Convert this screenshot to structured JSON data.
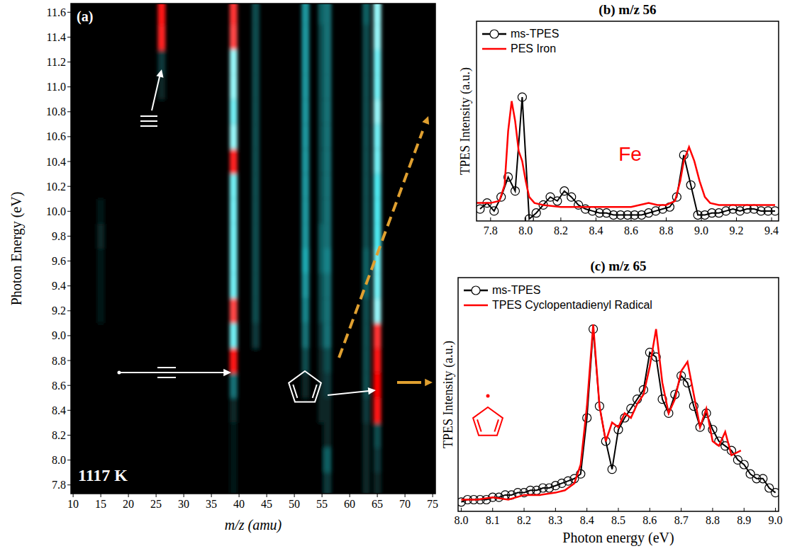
{
  "chart_data": [
    {
      "type": "heatmap",
      "title": "(a)",
      "x_label": "m/z (amu)",
      "y_label": "Photon Energy (eV)",
      "annotations": [
        "1117 K"
      ],
      "x": [
        15,
        26,
        39,
        43,
        52,
        55,
        56,
        63,
        65
      ],
      "y": [
        7.8,
        8.0,
        8.2,
        8.4,
        8.6,
        8.8,
        9.0,
        9.2,
        9.4,
        9.6,
        9.8,
        10.0,
        10.2,
        10.4,
        10.6,
        10.8,
        11.0,
        11.2,
        11.4,
        11.6
      ],
      "cells": [
        [
          0,
          0,
          0.05,
          0,
          0,
          0,
          0.15,
          0.1,
          0.1
        ],
        [
          0,
          0,
          0.05,
          0,
          0,
          0,
          0.25,
          0.1,
          0.15
        ],
        [
          0,
          0,
          0.05,
          0,
          0,
          0,
          0.1,
          0.1,
          0.2
        ],
        [
          0,
          0,
          0.1,
          0,
          0,
          0.1,
          0.1,
          0.15,
          0.95
        ],
        [
          0,
          0,
          0.3,
          0,
          0.1,
          0.1,
          0.15,
          0.2,
          1
        ],
        [
          0,
          0,
          0.95,
          0,
          0.2,
          0.1,
          0.2,
          0.2,
          0.95
        ],
        [
          0,
          0,
          0.7,
          0.15,
          0.3,
          0.15,
          0.3,
          0.2,
          0.85
        ],
        [
          0.05,
          0,
          0.8,
          0.2,
          0.35,
          0.2,
          0.3,
          0.2,
          0.75
        ],
        [
          0.05,
          0,
          0.7,
          0.2,
          0.4,
          0.2,
          0.3,
          0.25,
          0.7
        ],
        [
          0.05,
          0,
          0.7,
          0.2,
          0.45,
          0.25,
          0.35,
          0.25,
          0.7
        ],
        [
          0.1,
          0,
          0.7,
          0.2,
          0.4,
          0.25,
          0.3,
          0.2,
          0.65
        ],
        [
          0.05,
          0,
          0.7,
          0.2,
          0.4,
          0.2,
          0.3,
          0.2,
          0.65
        ],
        [
          0,
          0,
          0.7,
          0.2,
          0.4,
          0.2,
          0.3,
          0.2,
          0.65
        ],
        [
          0,
          0,
          0.9,
          0.2,
          0.4,
          0.2,
          0.3,
          0.2,
          0.7
        ],
        [
          0,
          0,
          0.75,
          0.2,
          0.4,
          0.2,
          0.3,
          0.2,
          0.7
        ],
        [
          0,
          0,
          0.7,
          0.2,
          0.4,
          0.2,
          0.3,
          0.2,
          0.75
        ],
        [
          0,
          0.1,
          0.75,
          0.2,
          0.4,
          0.2,
          0.3,
          0.2,
          0.7
        ],
        [
          0,
          0.15,
          0.75,
          0.2,
          0.4,
          0.2,
          0.3,
          0.2,
          0.7
        ],
        [
          0,
          0.9,
          0.8,
          0.2,
          0.4,
          0.2,
          0.3,
          0.2,
          0.75
        ],
        [
          0,
          0.95,
          0.85,
          0.2,
          0.4,
          0.25,
          0.3,
          0.25,
          0.75
        ]
      ],
      "xlim": [
        9.6,
        75.5
      ],
      "ylim": [
        7.73,
        11.67
      ],
      "xticks": [
        10,
        15,
        20,
        25,
        30,
        35,
        40,
        45,
        50,
        55,
        60,
        65,
        70,
        75
      ],
      "yticks": [
        7.8,
        {
          "value": 8,
          "label": "8.0"
        },
        8.2,
        8.4,
        8.6,
        8.8,
        {
          "value": 9,
          "label": "9.0"
        },
        9.2,
        9.4,
        9.6,
        9.8,
        {
          "value": 10,
          "label": "10.0"
        },
        10.2,
        10.4,
        10.6,
        10.8,
        {
          "value": 11,
          "label": "11.0"
        },
        11.2,
        11.4,
        11.6
      ]
    },
    {
      "type": "line",
      "title": "(b) m/z 56",
      "y_label": "TPES Intensity (a.u.)",
      "annotations": [
        "Fe"
      ],
      "xlim": [
        7.72,
        9.44
      ],
      "ylim": [
        0,
        1
      ],
      "xticks": [
        7.8,
        {
          "value": 8,
          "label": "8.0"
        },
        8.2,
        8.4,
        8.6,
        8.8,
        {
          "value": 9,
          "label": "9.0"
        },
        9.2,
        9.4
      ],
      "tick_labels": "x",
      "legend": "upper-left",
      "series": [
        {
          "name": "ms-TPES",
          "color": "#000000",
          "marker": "circle",
          "line_style": "solid",
          "x": [
            7.74,
            7.78,
            7.82,
            7.86,
            7.9,
            7.94,
            7.98,
            8.02,
            8.06,
            8.1,
            8.14,
            8.18,
            8.22,
            8.26,
            8.3,
            8.34,
            8.38,
            8.42,
            8.46,
            8.5,
            8.54,
            8.58,
            8.62,
            8.66,
            8.7,
            8.74,
            8.78,
            8.82,
            8.86,
            8.9,
            8.94,
            8.98,
            9.02,
            9.06,
            9.1,
            9.14,
            9.18,
            9.22,
            9.26,
            9.3,
            9.34,
            9.38,
            9.42
          ],
          "values": [
            0.06,
            0.09,
            0.05,
            0.12,
            0.22,
            0.15,
            0.62,
            0.01,
            0.04,
            0.08,
            0.12,
            0.1,
            0.15,
            0.12,
            0.08,
            0.06,
            0.05,
            0.04,
            0.04,
            0.03,
            0.03,
            0.03,
            0.03,
            0.03,
            0.04,
            0.05,
            0.06,
            0.07,
            0.12,
            0.33,
            0.18,
            0.03,
            0.03,
            0.04,
            0.04,
            0.05,
            0.06,
            0.05,
            0.06,
            0.06,
            0.05,
            0.05,
            0.05
          ]
        },
        {
          "name": "PES Iron",
          "color": "#ff0000",
          "marker": "none",
          "line_style": "solid",
          "x": [
            7.72,
            7.8,
            7.85,
            7.88,
            7.9,
            7.92,
            7.94,
            7.96,
            7.98,
            8.0,
            8.02,
            8.05,
            8.1,
            8.2,
            8.4,
            8.6,
            8.7,
            8.75,
            8.8,
            8.85,
            8.88,
            8.9,
            8.93,
            8.96,
            8.99,
            9.02,
            9.05,
            9.1,
            9.2,
            9.3,
            9.42
          ],
          "values": [
            0.09,
            0.09,
            0.1,
            0.18,
            0.45,
            0.6,
            0.5,
            0.35,
            0.3,
            0.2,
            0.12,
            0.09,
            0.08,
            0.07,
            0.07,
            0.07,
            0.09,
            0.08,
            0.08,
            0.1,
            0.2,
            0.3,
            0.37,
            0.3,
            0.2,
            0.12,
            0.09,
            0.08,
            0.08,
            0.08,
            0.08
          ]
        }
      ]
    },
    {
      "type": "line",
      "title": "(c) m/z 65",
      "x_label": "Photon energy (eV)",
      "y_label": "TPES Intensity (a.u.)",
      "xlim": [
        7.99,
        9.01
      ],
      "ylim": [
        0,
        1
      ],
      "xticks": [
        {
          "value": 8,
          "label": "8.0"
        },
        8.1,
        8.2,
        8.3,
        8.4,
        8.5,
        8.6,
        8.7,
        8.8,
        8.9,
        {
          "value": 9,
          "label": "9.0"
        }
      ],
      "tick_labels": "x",
      "legend": "upper-left",
      "series": [
        {
          "name": "ms-TPES",
          "color": "#000000",
          "marker": "circle",
          "line_style": "solid",
          "x": [
            8.0,
            8.02,
            8.04,
            8.06,
            8.08,
            8.1,
            8.12,
            8.14,
            8.16,
            8.18,
            8.2,
            8.22,
            8.24,
            8.26,
            8.28,
            8.3,
            8.32,
            8.34,
            8.36,
            8.38,
            8.4,
            8.42,
            8.44,
            8.46,
            8.48,
            8.5,
            8.52,
            8.54,
            8.56,
            8.58,
            8.6,
            8.62,
            8.64,
            8.66,
            8.68,
            8.7,
            8.72,
            8.74,
            8.76,
            8.78,
            8.8,
            8.82,
            8.84,
            8.86,
            8.88,
            8.9,
            8.92,
            8.94,
            8.96,
            8.98,
            9.0
          ],
          "values": [
            0.04,
            0.05,
            0.05,
            0.05,
            0.05,
            0.06,
            0.06,
            0.07,
            0.07,
            0.08,
            0.08,
            0.09,
            0.09,
            0.1,
            0.1,
            0.11,
            0.12,
            0.13,
            0.14,
            0.16,
            0.4,
            0.78,
            0.45,
            0.3,
            0.18,
            0.35,
            0.4,
            0.44,
            0.48,
            0.52,
            0.68,
            0.66,
            0.48,
            0.42,
            0.5,
            0.58,
            0.55,
            0.45,
            0.36,
            0.42,
            0.35,
            0.3,
            0.28,
            0.26,
            0.22,
            0.2,
            0.16,
            0.14,
            0.14,
            0.1,
            0.08
          ]
        },
        {
          "name": "TPES Cyclopentadienyl Radical",
          "color": "#ff0000",
          "marker": "none",
          "line_style": "solid",
          "x": [
            8.0,
            8.05,
            8.1,
            8.15,
            8.2,
            8.25,
            8.3,
            8.33,
            8.36,
            8.38,
            8.4,
            8.42,
            8.44,
            8.46,
            8.48,
            8.5,
            8.52,
            8.54,
            8.56,
            8.58,
            8.6,
            8.62,
            8.64,
            8.66,
            8.68,
            8.7,
            8.72,
            8.74,
            8.76,
            8.78,
            8.8,
            8.82,
            8.84,
            8.86,
            8.89
          ],
          "values": [
            0.05,
            0.05,
            0.06,
            0.05,
            0.07,
            0.07,
            0.08,
            0.09,
            0.12,
            0.2,
            0.45,
            0.8,
            0.45,
            0.3,
            0.38,
            0.36,
            0.42,
            0.4,
            0.46,
            0.5,
            0.62,
            0.78,
            0.55,
            0.42,
            0.48,
            0.6,
            0.64,
            0.5,
            0.36,
            0.44,
            0.3,
            0.28,
            0.34,
            0.24,
            0.26
          ]
        }
      ]
    }
  ]
}
